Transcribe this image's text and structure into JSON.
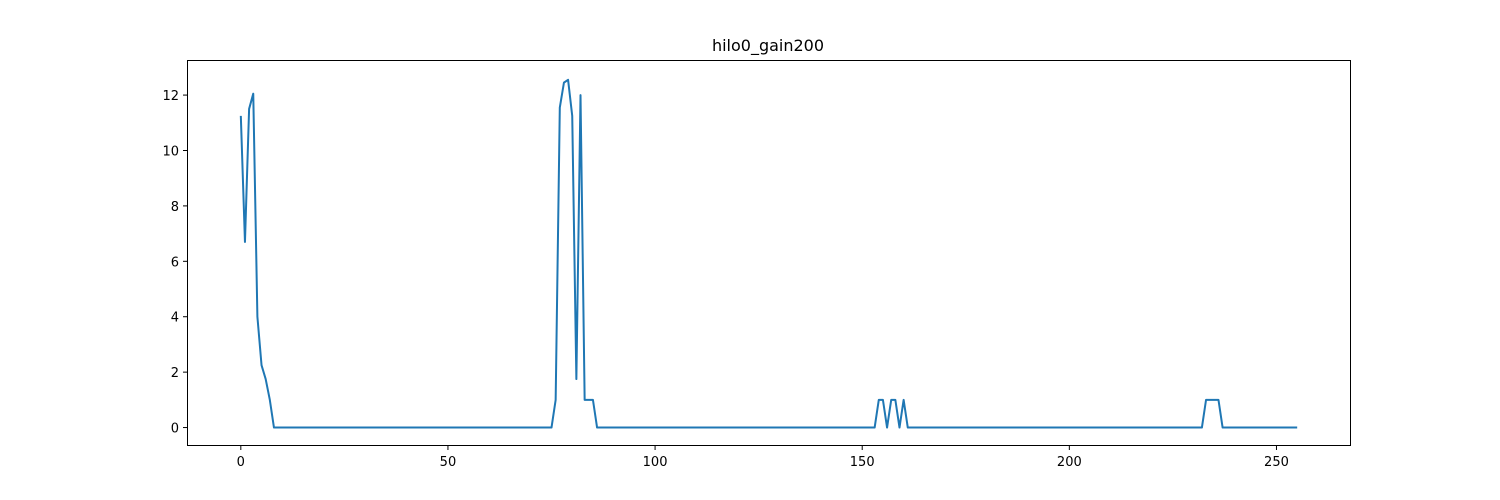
{
  "chart_data": {
    "type": "line",
    "title": "hilo0_gain200",
    "xlabel": "",
    "ylabel": "",
    "xlim": [
      -12.75,
      267.75
    ],
    "ylim": [
      -0.63,
      13.23
    ],
    "xticks": [
      0,
      50,
      100,
      150,
      200,
      250
    ],
    "yticks": [
      0,
      2,
      4,
      6,
      8,
      10,
      12
    ],
    "grid": false,
    "legend": "none",
    "series": [
      {
        "color": "#1f77b4",
        "x": [
          0,
          1,
          2,
          3,
          4,
          5,
          6,
          7,
          8,
          9,
          75,
          76,
          77,
          78,
          79,
          80,
          81,
          82,
          83,
          84,
          85,
          86,
          153,
          154,
          155,
          156,
          157,
          158,
          159,
          160,
          161,
          232,
          233,
          234,
          235,
          236,
          237,
          255
        ],
        "y": [
          11.25,
          6.7,
          11.5,
          12.05,
          4.0,
          2.25,
          1.75,
          1.0,
          0,
          0,
          0,
          1.0,
          11.55,
          12.45,
          12.55,
          11.25,
          1.75,
          12.0,
          1.0,
          1.0,
          1.0,
          0,
          0,
          1.0,
          1.0,
          0,
          1.0,
          1.0,
          0,
          1.0,
          0,
          0,
          1.0,
          1.0,
          1.0,
          1.0,
          0,
          0
        ]
      }
    ]
  }
}
